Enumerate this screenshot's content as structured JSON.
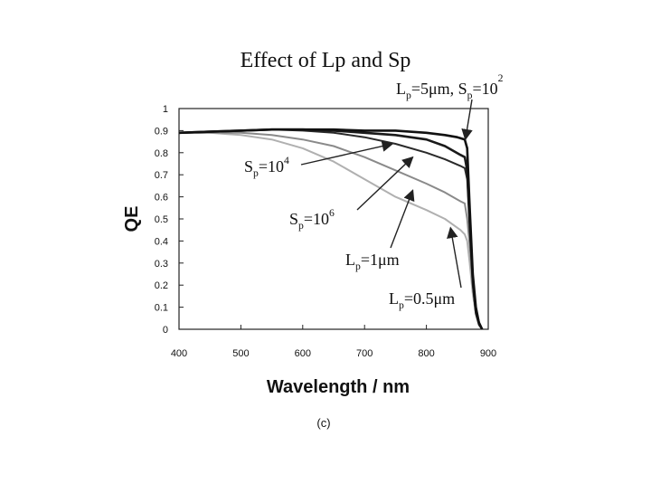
{
  "chart_data": {
    "type": "line",
    "title": "Effect of Lp and Sp",
    "xlabel": "Wavelength / nm",
    "ylabel": "QE",
    "caption": "(c)",
    "xlim": [
      400,
      900
    ],
    "ylim": [
      0,
      1
    ],
    "x_ticks": [
      400,
      500,
      600,
      700,
      800,
      900
    ],
    "y_ticks": [
      0,
      0.1,
      0.2,
      0.3,
      0.4,
      0.5,
      0.6,
      0.7,
      0.8,
      0.9,
      1
    ],
    "x_tick_labels": [
      "400",
      "500",
      "600",
      "700",
      "800",
      "900"
    ],
    "y_tick_labels": [
      "0",
      "0.1",
      "0.2",
      "0.3",
      "0.4",
      "0.5",
      "0.6",
      "0.7",
      "0.8",
      "0.9",
      "1"
    ],
    "grid": false,
    "series": [
      {
        "name": "Lp=5μm, Sp=10^2",
        "color": "#111111",
        "x": [
          400,
          450,
          500,
          550,
          600,
          650,
          700,
          750,
          800,
          830,
          850,
          862,
          866,
          870,
          875,
          880,
          885,
          890
        ],
        "values": [
          0.89,
          0.895,
          0.9,
          0.905,
          0.905,
          0.905,
          0.9,
          0.9,
          0.89,
          0.88,
          0.87,
          0.86,
          0.82,
          0.55,
          0.25,
          0.1,
          0.03,
          0.0
        ]
      },
      {
        "name": "Sp=10^4",
        "color": "#1a1a1a",
        "x": [
          400,
          450,
          500,
          550,
          600,
          650,
          700,
          750,
          800,
          830,
          855,
          862,
          866,
          870,
          875,
          880,
          885,
          890
        ],
        "values": [
          0.89,
          0.895,
          0.9,
          0.905,
          0.905,
          0.9,
          0.89,
          0.88,
          0.86,
          0.83,
          0.79,
          0.78,
          0.72,
          0.5,
          0.22,
          0.08,
          0.03,
          0.0
        ]
      },
      {
        "name": "Sp=10^6",
        "color": "#2a2a2a",
        "x": [
          400,
          450,
          500,
          550,
          600,
          650,
          700,
          750,
          800,
          830,
          855,
          862,
          866,
          870,
          875,
          880,
          885,
          890
        ],
        "values": [
          0.89,
          0.895,
          0.9,
          0.905,
          0.9,
          0.89,
          0.87,
          0.84,
          0.8,
          0.77,
          0.74,
          0.73,
          0.68,
          0.45,
          0.2,
          0.07,
          0.02,
          0.0
        ]
      },
      {
        "name": "Lp=1μm",
        "color": "#8a8a8a",
        "x": [
          400,
          450,
          500,
          550,
          600,
          650,
          700,
          750,
          800,
          830,
          855,
          862,
          866,
          870,
          875,
          880,
          885,
          890
        ],
        "values": [
          0.89,
          0.89,
          0.89,
          0.88,
          0.86,
          0.83,
          0.78,
          0.72,
          0.66,
          0.62,
          0.58,
          0.57,
          0.5,
          0.38,
          0.2,
          0.08,
          0.03,
          0.0
        ]
      },
      {
        "name": "Lp=0.5μm",
        "color": "#b0b0b0",
        "x": [
          400,
          450,
          500,
          550,
          600,
          650,
          700,
          750,
          800,
          830,
          855,
          862,
          866,
          870,
          875,
          880,
          885,
          890
        ],
        "values": [
          0.89,
          0.89,
          0.88,
          0.86,
          0.82,
          0.76,
          0.68,
          0.6,
          0.54,
          0.5,
          0.45,
          0.43,
          0.4,
          0.3,
          0.16,
          0.07,
          0.02,
          0.0
        ]
      }
    ],
    "annotations": [
      {
        "id": "a1",
        "text": [
          "L",
          "p",
          "=5μm, S",
          "p",
          "=10",
          "2"
        ],
        "target_x": 863,
        "target_y": 0.86
      },
      {
        "id": "a2",
        "text": [
          "S",
          "p",
          "=10",
          "4"
        ],
        "target_x": 745,
        "target_y": 0.84
      },
      {
        "id": "a3",
        "text": [
          "S",
          "p",
          "=10",
          "6"
        ],
        "target_x": 778,
        "target_y": 0.78
      },
      {
        "id": "a4",
        "text": [
          "L",
          "p",
          "=1μm"
        ],
        "target_x": 778,
        "target_y": 0.63
      },
      {
        "id": "a5",
        "text": [
          "L",
          "p",
          "=0.5μm"
        ],
        "target_x": 839,
        "target_y": 0.46
      }
    ]
  }
}
